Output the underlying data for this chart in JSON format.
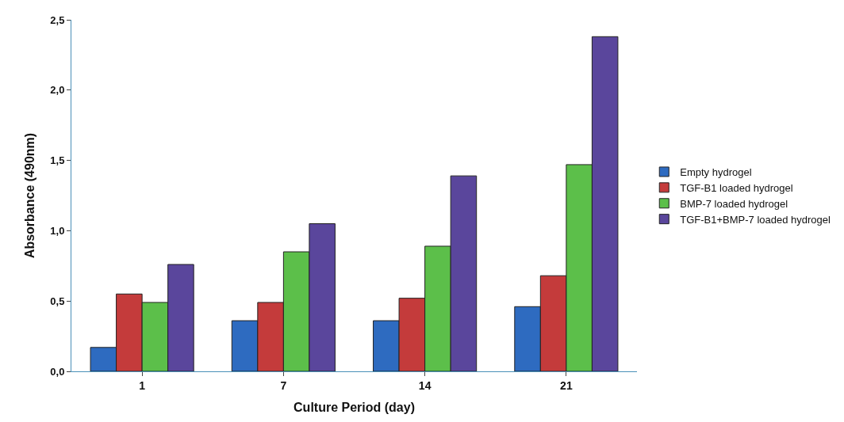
{
  "chart_data": {
    "type": "bar",
    "xlabel": "Culture Period (day)",
    "ylabel": "Absorbance (490nm)",
    "categories": [
      "1",
      "7",
      "14",
      "21"
    ],
    "series": [
      {
        "name": "Empty hydrogel",
        "color": "#2e6bc0",
        "values": [
          0.17,
          0.36,
          0.36,
          0.46
        ]
      },
      {
        "name": "TGF-B1 loaded hydrogel",
        "color": "#c43b3b",
        "values": [
          0.55,
          0.49,
          0.52,
          0.68
        ]
      },
      {
        "name": "BMP-7 loaded hydrogel",
        "color": "#5cbf4a",
        "values": [
          0.49,
          0.85,
          0.89,
          1.47
        ]
      },
      {
        "name": "TGF-B1+BMP-7 loaded hydrogel",
        "color": "#5a469c",
        "values": [
          0.76,
          1.05,
          1.39,
          2.38
        ]
      }
    ],
    "ylim": [
      0,
      2.5
    ],
    "yticks": [
      {
        "value": 0,
        "label": "0,0"
      },
      {
        "value": 0.5,
        "label": "0,5"
      },
      {
        "value": 1,
        "label": "1,0"
      },
      {
        "value": 1.5,
        "label": "1,5"
      },
      {
        "value": 2,
        "label": "2,0"
      },
      {
        "value": 2.5,
        "label": "2,5"
      }
    ],
    "legend": "right"
  }
}
